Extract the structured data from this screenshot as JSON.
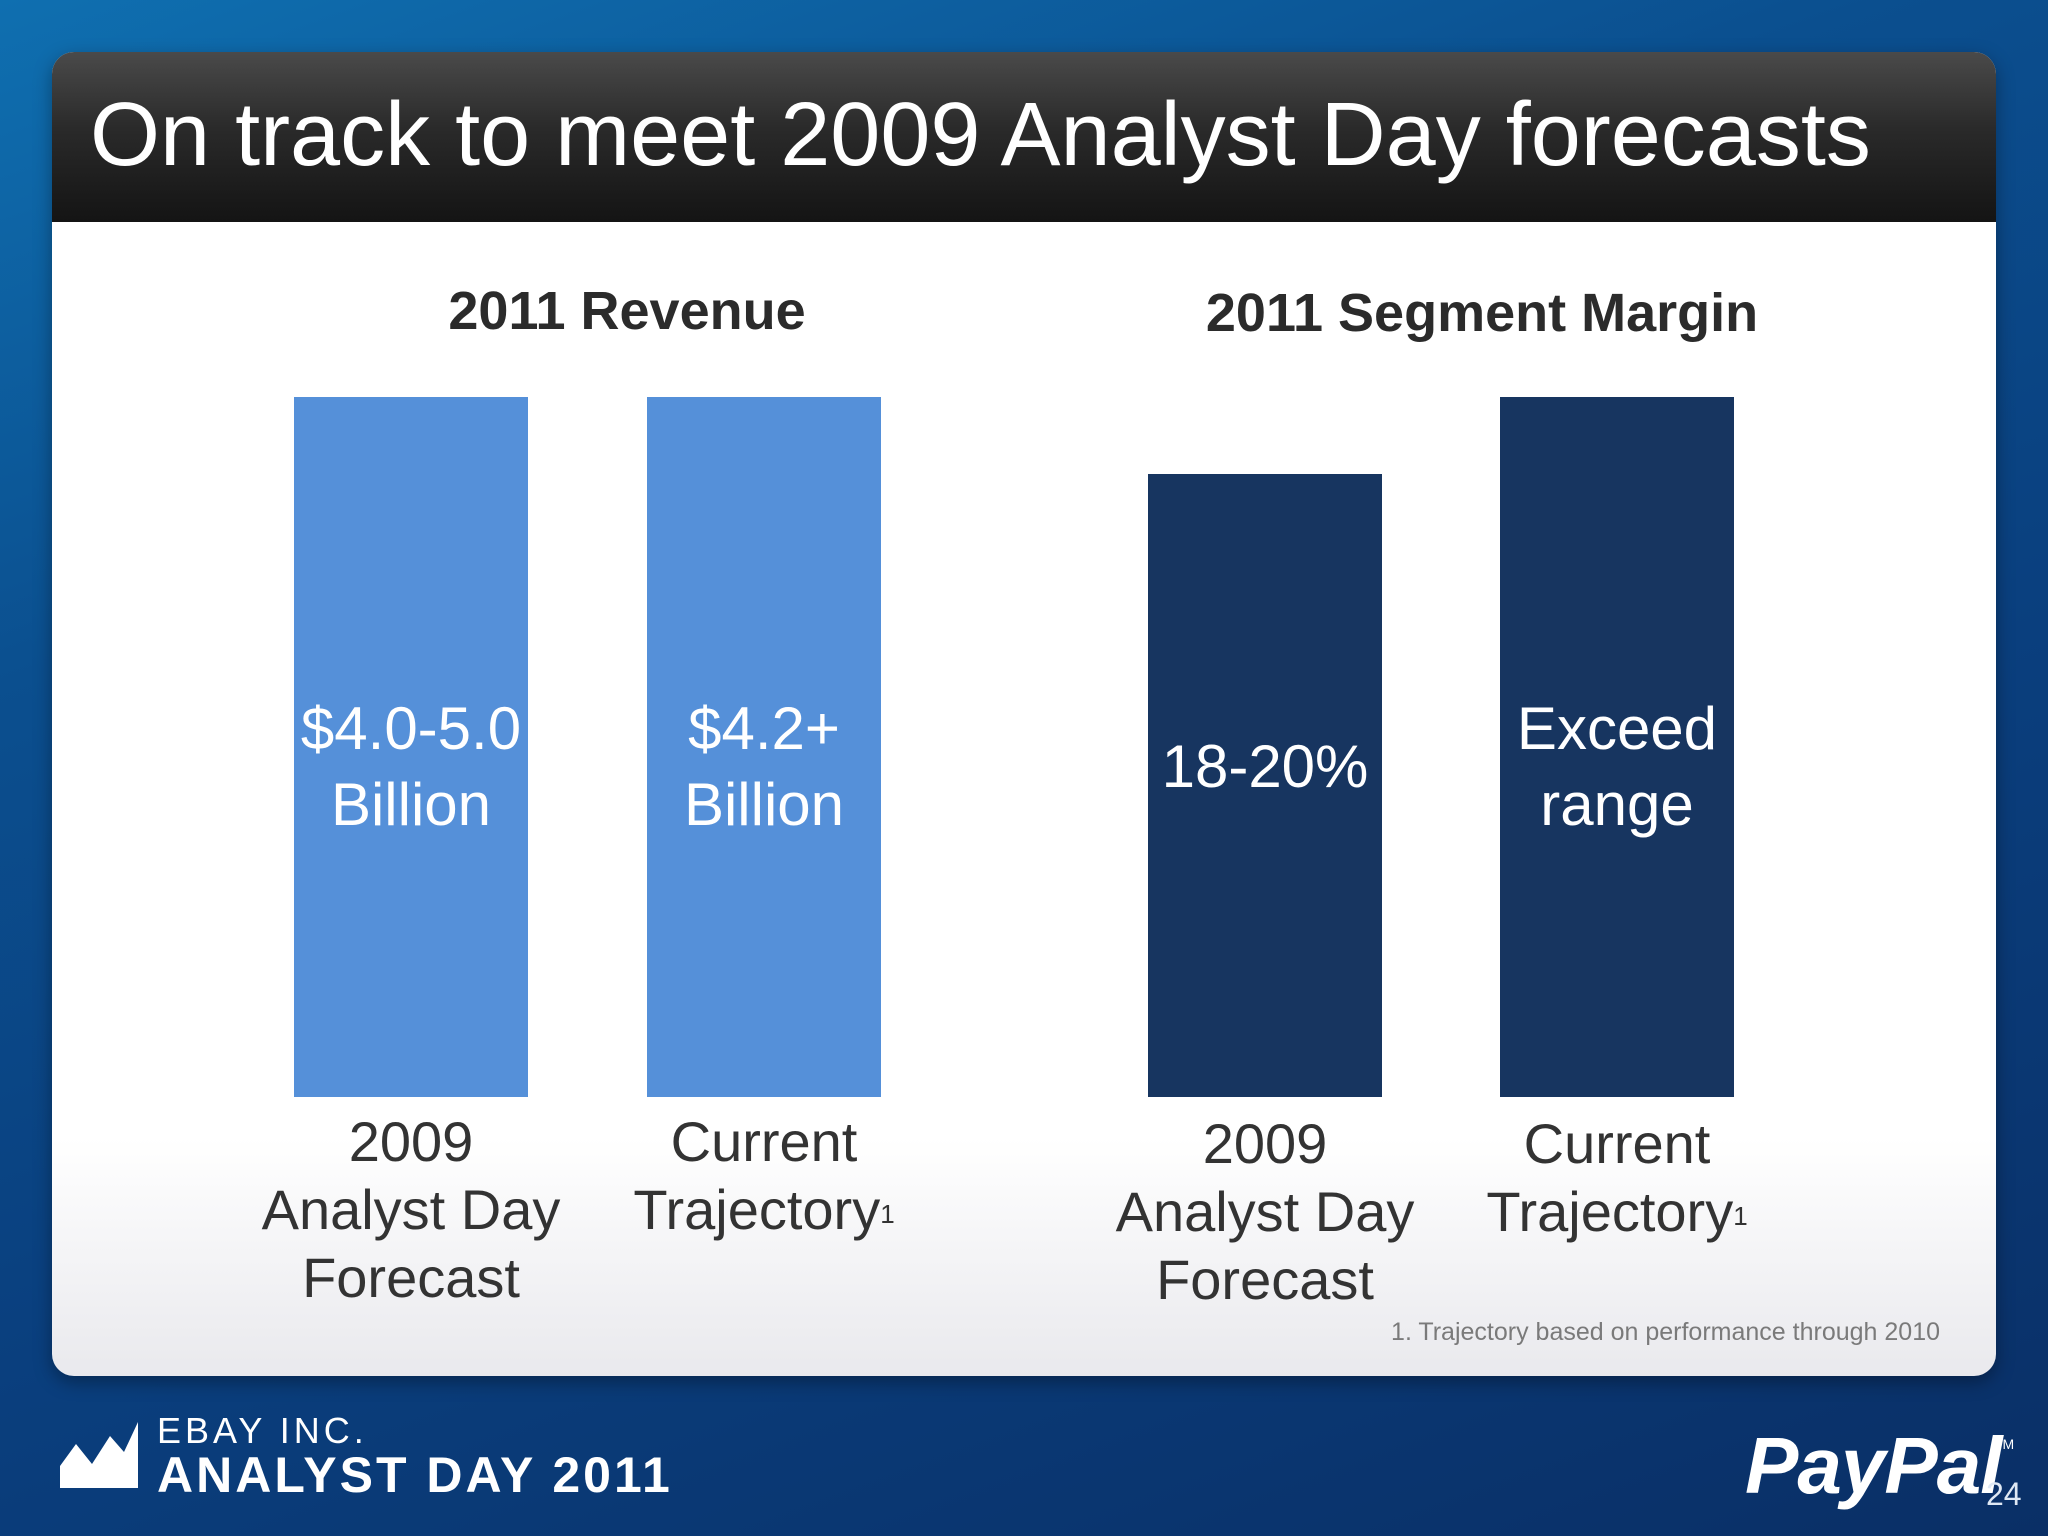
{
  "slide": {
    "title": "On track to meet 2009 Analyst Day forecasts",
    "footnote": "1. Trajectory based on performance through 2010",
    "page_number": "24"
  },
  "branding": {
    "company": "EBAY INC.",
    "event": "ANALYST DAY 2011",
    "logo": "PayPal",
    "trademark": "TM"
  },
  "chart_data": [
    {
      "type": "bar",
      "title": "2011 Revenue",
      "categories": [
        "2009\nAnalyst Day\nForecast",
        "Current\nTrajectory"
      ],
      "category_superscripts": [
        "",
        "1"
      ],
      "data_labels": [
        "$4.0-5.0\nBillion",
        "$4.2+\nBillion"
      ],
      "bar_heights_relative": [
        1.0,
        1.0
      ],
      "color": "#5590d9"
    },
    {
      "type": "bar",
      "title": "2011 Segment Margin",
      "categories": [
        "2009\nAnalyst Day\nForecast",
        "Current\nTrajectory"
      ],
      "category_superscripts": [
        "",
        "1"
      ],
      "data_labels": [
        "18-20%",
        "Exceed\nrange"
      ],
      "bar_heights_relative": [
        0.89,
        1.0
      ],
      "color": "#173560"
    }
  ]
}
